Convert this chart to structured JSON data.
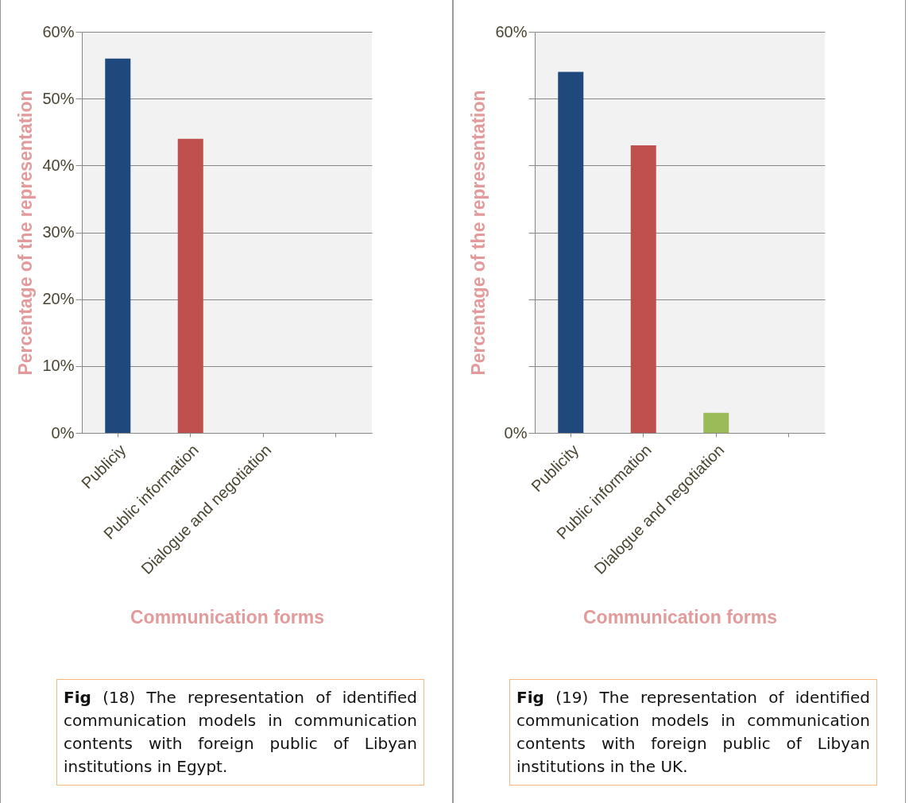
{
  "chart_data": [
    {
      "type": "bar",
      "categories": [
        "Publiciy",
        "Public information",
        "Dialogue and negotiation",
        null
      ],
      "values": [
        56,
        44,
        0,
        null
      ],
      "colors": [
        "#1f497d",
        "#c0504d",
        "#9bbb59",
        null
      ],
      "ylim": [
        0,
        60
      ],
      "yticks": [
        {
          "value": 0,
          "label": "0%"
        },
        {
          "value": 10,
          "label": "10%"
        },
        {
          "value": 20,
          "label": "20%"
        },
        {
          "value": 30,
          "label": "30%"
        },
        {
          "value": 40,
          "label": "40%"
        },
        {
          "value": 50,
          "label": "50%"
        },
        {
          "value": 60,
          "label": "60%"
        }
      ],
      "grid": "y",
      "xlabel": "Communication forms",
      "ylabel": "Percentage of the representation",
      "annotations": [
        "Fig (18) The representation of identified communication models in communication contents with foreign public of Libyan institutions in Egypt."
      ]
    },
    {
      "type": "bar",
      "categories": [
        "Publicity",
        "Public information",
        "Dialogue and negotiation",
        null
      ],
      "values": [
        54,
        43,
        3,
        null
      ],
      "colors": [
        "#1f497d",
        "#c0504d",
        "#9bbb59",
        null
      ],
      "ylim": [
        0,
        60
      ],
      "yticks": [
        {
          "value": 0,
          "label": "0%"
        },
        {
          "value": 10,
          "label": null
        },
        {
          "value": 20,
          "label": null
        },
        {
          "value": 30,
          "label": null
        },
        {
          "value": 40,
          "label": null
        },
        {
          "value": 50,
          "label": null
        },
        {
          "value": 60,
          "label": "60%"
        }
      ],
      "grid": "y",
      "xlabel": "Communication forms",
      "ylabel": "Percentage of the representation",
      "annotations": [
        "Fig (19) The representation of identified communication models in communication contents with foreign public of Libyan institutions in the UK."
      ]
    }
  ]
}
